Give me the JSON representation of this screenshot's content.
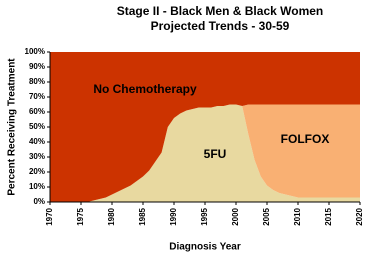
{
  "chart_data": {
    "type": "stacked_area",
    "title": "Stage II - Black Men & Black Women",
    "subtitle": "Projected Trends - 30-59",
    "x_label": "Diagnosis Year",
    "y_label": "Percent Receiving Treatment",
    "x": [
      1970,
      1971,
      1972,
      1973,
      1974,
      1975,
      1976,
      1977,
      1978,
      1979,
      1980,
      1981,
      1982,
      1983,
      1984,
      1985,
      1986,
      1987,
      1988,
      1989,
      1990,
      1991,
      1992,
      1993,
      1994,
      1995,
      1996,
      1997,
      1998,
      1999,
      2000,
      2001,
      2002,
      2003,
      2004,
      2005,
      2006,
      2007,
      2008,
      2009,
      2010,
      2011,
      2012,
      2013,
      2014,
      2015,
      2016,
      2017,
      2018,
      2019,
      2020
    ],
    "series": [
      {
        "name": "5FU",
        "color": "#e8d9a0",
        "values": [
          0,
          0,
          0,
          0,
          0,
          0,
          0,
          1,
          2,
          3,
          5,
          7,
          9,
          11,
          14,
          17,
          21,
          27,
          33,
          50,
          56,
          59,
          61,
          62,
          63,
          63,
          63,
          64,
          64,
          65,
          65,
          64,
          45,
          28,
          17,
          11,
          8,
          6,
          5,
          4,
          3,
          3,
          3,
          3,
          3,
          3,
          3,
          3,
          3,
          3,
          3
        ]
      },
      {
        "name": "FOLFOX",
        "color": "#f9b073",
        "values": [
          0,
          0,
          0,
          0,
          0,
          0,
          0,
          0,
          0,
          0,
          0,
          0,
          0,
          0,
          0,
          0,
          0,
          0,
          0,
          0,
          0,
          0,
          0,
          0,
          0,
          0,
          0,
          0,
          0,
          0,
          0,
          0,
          20,
          37,
          48,
          54,
          57,
          59,
          60,
          61,
          62,
          62,
          62,
          62,
          62,
          62,
          62,
          62,
          62,
          62,
          62
        ]
      },
      {
        "name": "No Chemotherapy",
        "color": "#cc3300",
        "values": [
          100,
          100,
          100,
          100,
          100,
          100,
          100,
          99,
          98,
          97,
          95,
          93,
          91,
          89,
          86,
          83,
          79,
          73,
          67,
          50,
          44,
          41,
          39,
          38,
          37,
          37,
          37,
          36,
          36,
          35,
          35,
          36,
          35,
          35,
          35,
          35,
          35,
          35,
          35,
          35,
          35,
          35,
          35,
          35,
          35,
          35,
          35,
          35,
          35,
          35,
          35
        ]
      }
    ],
    "xlim": [
      1970,
      2020
    ],
    "xticks": [
      1970,
      1975,
      1980,
      1985,
      1990,
      1995,
      2000,
      2005,
      2010,
      2015,
      2020
    ],
    "ylim": [
      0,
      100
    ],
    "yticks": [
      {
        "value": 0,
        "label": "0%"
      },
      {
        "value": 10,
        "label": "10%"
      },
      {
        "value": 20,
        "label": "20%"
      },
      {
        "value": 30,
        "label": "30%"
      },
      {
        "value": 40,
        "label": "40%"
      },
      {
        "value": 50,
        "label": "50%"
      },
      {
        "value": 60,
        "label": "60%"
      },
      {
        "value": 70,
        "label": "70%"
      },
      {
        "value": 80,
        "label": "80%"
      },
      {
        "value": 90,
        "label": "90%"
      },
      {
        "value": 100,
        "label": "100%"
      }
    ],
    "grid": false,
    "legend": false
  }
}
